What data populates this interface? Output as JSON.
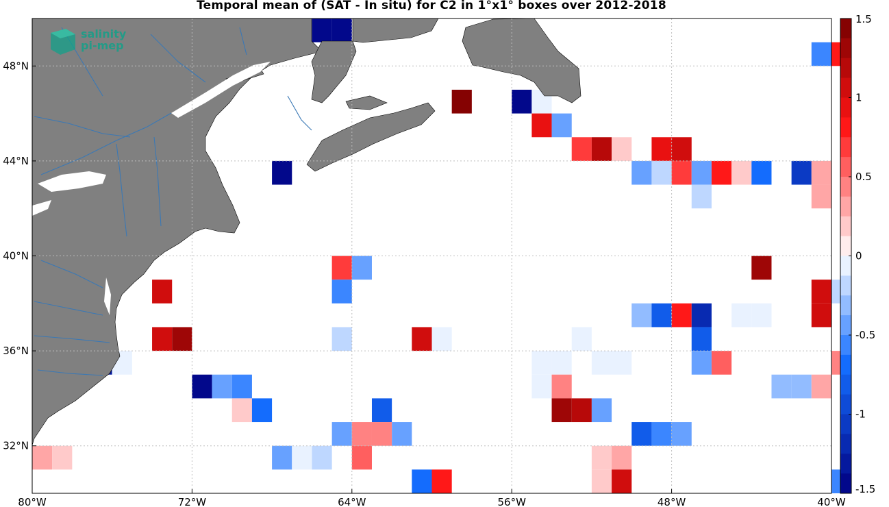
{
  "title": "Temporal mean of (SAT - In situ) for C2 in 1°x1° boxes over 2012-2018",
  "logo": {
    "line1": "salinity",
    "line2": "pi-mep",
    "icon": "pimep-cube-logo"
  },
  "axes": {
    "lon_range": [
      -80,
      -40
    ],
    "lat_range": [
      30,
      50
    ],
    "x_ticks": [
      {
        "value": -80,
        "label": "80°W"
      },
      {
        "value": -72,
        "label": "72°W"
      },
      {
        "value": -64,
        "label": "64°W"
      },
      {
        "value": -56,
        "label": "56°W"
      },
      {
        "value": -48,
        "label": "48°W"
      },
      {
        "value": -40,
        "label": "40°W"
      }
    ],
    "y_ticks": [
      {
        "value": 48,
        "label": "48°N"
      },
      {
        "value": 44,
        "label": "44°N"
      },
      {
        "value": 40,
        "label": "40°N"
      },
      {
        "value": 36,
        "label": "36°N"
      },
      {
        "value": 32,
        "label": "32°N"
      }
    ],
    "grid": true
  },
  "colorbar": {
    "range": [
      -1.5,
      1.5
    ],
    "levels": 24,
    "ticks": [
      {
        "value": 1.5,
        "label": "1.5"
      },
      {
        "value": 1,
        "label": "1"
      },
      {
        "value": 0.5,
        "label": "0.5"
      },
      {
        "value": 0,
        "label": "0"
      },
      {
        "value": -0.5,
        "label": "-0.5"
      },
      {
        "value": -1,
        "label": "-1"
      },
      {
        "value": -1.5,
        "label": "-1.5"
      }
    ]
  },
  "colors": {
    "land": "#808080",
    "rivers": "#3a78b5",
    "ocean": "#ffffff",
    "grid": "#bdbdbd"
  },
  "chart_data": {
    "type": "heatmap",
    "cell_size_deg": 1,
    "cells": [
      {
        "lon": -66,
        "lat": 49,
        "v": -1.4
      },
      {
        "lon": -65,
        "lat": 49,
        "v": -1.4
      },
      {
        "lon": -41,
        "lat": 48,
        "v": -0.6
      },
      {
        "lon": -40,
        "lat": 48,
        "v": 0.8
      },
      {
        "lon": -59,
        "lat": 46,
        "v": 1.4
      },
      {
        "lon": -56,
        "lat": 46,
        "v": -1.5
      },
      {
        "lon": -55,
        "lat": 46,
        "v": -0.1
      },
      {
        "lon": -55,
        "lat": 45,
        "v": 0.9
      },
      {
        "lon": -54,
        "lat": 45,
        "v": -0.4
      },
      {
        "lon": -53,
        "lat": 44,
        "v": 0.7
      },
      {
        "lon": -52,
        "lat": 44,
        "v": 1.2
      },
      {
        "lon": -51,
        "lat": 44,
        "v": 0.2
      },
      {
        "lon": -49,
        "lat": 44,
        "v": 0.95
      },
      {
        "lon": -48,
        "lat": 44,
        "v": 1.0
      },
      {
        "lon": -68,
        "lat": 43,
        "v": -1.5
      },
      {
        "lon": -50,
        "lat": 43,
        "v": -0.45
      },
      {
        "lon": -49,
        "lat": 43,
        "v": -0.15
      },
      {
        "lon": -48,
        "lat": 43,
        "v": 0.65
      },
      {
        "lon": -47,
        "lat": 43,
        "v": -0.4
      },
      {
        "lon": -46,
        "lat": 43,
        "v": 0.85
      },
      {
        "lon": -45,
        "lat": 43,
        "v": 0.2
      },
      {
        "lon": -44,
        "lat": 43,
        "v": -0.7
      },
      {
        "lon": -42,
        "lat": 43,
        "v": -1.1
      },
      {
        "lon": -41,
        "lat": 43,
        "v": 0.3
      },
      {
        "lon": -41,
        "lat": 42,
        "v": 0.35
      },
      {
        "lon": -47,
        "lat": 42,
        "v": -0.15
      },
      {
        "lon": -65,
        "lat": 39,
        "v": 0.7
      },
      {
        "lon": -64,
        "lat": 39,
        "v": -0.4
      },
      {
        "lon": -44,
        "lat": 39,
        "v": 1.3
      },
      {
        "lon": -74,
        "lat": 38,
        "v": 1.1
      },
      {
        "lon": -65,
        "lat": 38,
        "v": -0.6
      },
      {
        "lon": -41,
        "lat": 38,
        "v": 1.0
      },
      {
        "lon": -40,
        "lat": 38,
        "v": -0.15
      },
      {
        "lon": -50,
        "lat": 37,
        "v": -0.3
      },
      {
        "lon": -49,
        "lat": 37,
        "v": -0.8
      },
      {
        "lon": -48,
        "lat": 37,
        "v": 0.75
      },
      {
        "lon": -47,
        "lat": 37,
        "v": -1.2
      },
      {
        "lon": -45,
        "lat": 37,
        "v": -0.1
      },
      {
        "lon": -44,
        "lat": 37,
        "v": -0.1
      },
      {
        "lon": -41,
        "lat": 37,
        "v": 1.0
      },
      {
        "lon": -74,
        "lat": 36,
        "v": 1.0
      },
      {
        "lon": -73,
        "lat": 36,
        "v": 1.3
      },
      {
        "lon": -65,
        "lat": 36,
        "v": -0.25
      },
      {
        "lon": -61,
        "lat": 36,
        "v": 1.0
      },
      {
        "lon": -60,
        "lat": 36,
        "v": -0.1
      },
      {
        "lon": -53,
        "lat": 36,
        "v": -0.1
      },
      {
        "lon": -47,
        "lat": 36,
        "v": -0.85
      },
      {
        "lon": -77,
        "lat": 35,
        "v": -1.3
      },
      {
        "lon": -76,
        "lat": 35,
        "v": -0.1
      },
      {
        "lon": -55,
        "lat": 35,
        "v": -0.1
      },
      {
        "lon": -54,
        "lat": 35,
        "v": -0.1
      },
      {
        "lon": -52,
        "lat": 35,
        "v": -0.1
      },
      {
        "lon": -51,
        "lat": 35,
        "v": -0.1
      },
      {
        "lon": -47,
        "lat": 35,
        "v": -0.45
      },
      {
        "lon": -46,
        "lat": 35,
        "v": 0.6
      },
      {
        "lon": -40,
        "lat": 35,
        "v": 0.4
      },
      {
        "lon": -72,
        "lat": 34,
        "v": -1.5
      },
      {
        "lon": -71,
        "lat": 34,
        "v": -0.5
      },
      {
        "lon": -70,
        "lat": 34,
        "v": -0.55
      },
      {
        "lon": -55,
        "lat": 34,
        "v": -0.1
      },
      {
        "lon": -54,
        "lat": 34,
        "v": 0.45
      },
      {
        "lon": -43,
        "lat": 34,
        "v": -0.3
      },
      {
        "lon": -42,
        "lat": 34,
        "v": -0.3
      },
      {
        "lon": -41,
        "lat": 34,
        "v": 0.3
      },
      {
        "lon": -70,
        "lat": 33,
        "v": 0.2
      },
      {
        "lon": -69,
        "lat": 33,
        "v": -0.75
      },
      {
        "lon": -63,
        "lat": 33,
        "v": -0.8
      },
      {
        "lon": -54,
        "lat": 33,
        "v": 1.25
      },
      {
        "lon": -53,
        "lat": 33,
        "v": 1.15
      },
      {
        "lon": -52,
        "lat": 33,
        "v": -0.5
      },
      {
        "lon": -65,
        "lat": 32,
        "v": -0.45
      },
      {
        "lon": -64,
        "lat": 32,
        "v": 0.45
      },
      {
        "lon": -63,
        "lat": 32,
        "v": 0.45
      },
      {
        "lon": -62,
        "lat": 32,
        "v": -0.45
      },
      {
        "lon": -50,
        "lat": 32,
        "v": -0.85
      },
      {
        "lon": -49,
        "lat": 32,
        "v": -0.55
      },
      {
        "lon": -48,
        "lat": 32,
        "v": -0.45
      },
      {
        "lon": -80,
        "lat": 31,
        "v": 0.3
      },
      {
        "lon": -79,
        "lat": 31,
        "v": 0.15
      },
      {
        "lon": -68,
        "lat": 31,
        "v": -0.5
      },
      {
        "lon": -67,
        "lat": 31,
        "v": -0.1
      },
      {
        "lon": -66,
        "lat": 31,
        "v": -0.25
      },
      {
        "lon": -64,
        "lat": 31,
        "v": 0.6
      },
      {
        "lon": -52,
        "lat": 31,
        "v": 0.2
      },
      {
        "lon": -51,
        "lat": 31,
        "v": 0.35
      },
      {
        "lon": -61,
        "lat": 30,
        "v": -0.75
      },
      {
        "lon": -60,
        "lat": 30,
        "v": 0.75
      },
      {
        "lon": -52,
        "lat": 30,
        "v": 0.15
      },
      {
        "lon": -51,
        "lat": 30,
        "v": 1.05
      },
      {
        "lon": -40,
        "lat": 30,
        "v": -0.55
      }
    ]
  }
}
